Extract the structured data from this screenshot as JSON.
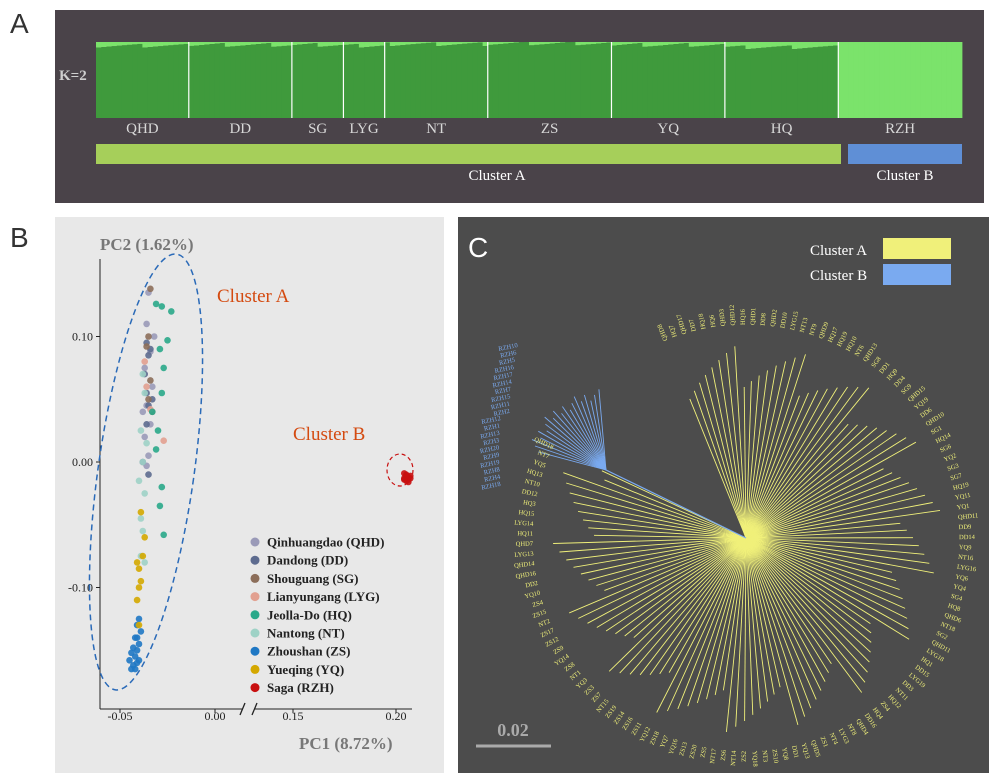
{
  "panel_letters": {
    "a": "A",
    "b": "B",
    "c": "C"
  },
  "colors": {
    "dark_panel": "#4a4349",
    "light_panel": "#e8e8e8",
    "tree_panel": "#4c4c4c",
    "cluster_a_bar": "#a6cf5a",
    "cluster_b_bar": "#5f8fd6",
    "cluster_a_tree": "#f0f07a",
    "cluster_b_tree": "#7aaaf0",
    "annotation": "#d44a10"
  },
  "chart_data": [
    {
      "panel": "A",
      "type": "bar",
      "k_label": "K=2",
      "populations": [
        "QHD",
        "DD",
        "SG",
        "LYG",
        "NT",
        "ZS",
        "YQ",
        "HQ",
        "RZH"
      ],
      "population_sample_counts": [
        18,
        20,
        10,
        8,
        20,
        24,
        22,
        22,
        24
      ],
      "population_mean_ancestry_cluster1": [
        0.95,
        0.96,
        0.96,
        0.95,
        0.97,
        0.98,
        0.96,
        0.93,
        0.0
      ],
      "clusters": [
        {
          "label": "Cluster A",
          "populations": [
            "QHD",
            "DD",
            "SG",
            "LYG",
            "NT",
            "ZS",
            "YQ",
            "HQ"
          ],
          "color": "#a6cf5a"
        },
        {
          "label": "Cluster B",
          "populations": [
            "RZH"
          ],
          "color": "#5f8fd6"
        }
      ]
    },
    {
      "panel": "B",
      "type": "scatter",
      "xlabel": "PC1 (8.72%)",
      "ylabel": "PC2 (1.62%)",
      "x_ticks": [
        "-0.05",
        "0.00",
        "0.15",
        "0.20"
      ],
      "y_ticks": [
        "0.10",
        "0.00",
        "-0.10"
      ],
      "xlim_left": [
        -0.056,
        0.012
      ],
      "xlim_right": [
        0.14,
        0.21
      ],
      "ylim": [
        -0.19,
        0.15
      ],
      "axis_break": true,
      "annotations": [
        "Cluster A",
        "Cluster B"
      ],
      "legend": [
        {
          "name": "Qinhuangdao (QHD)",
          "color": "#9a9ab8"
        },
        {
          "name": "Dandong (DD)",
          "color": "#5d6b8f"
        },
        {
          "name": "Shouguang (SG)",
          "color": "#8c6e5a"
        },
        {
          "name": "Lianyungang (LYG)",
          "color": "#e2a090"
        },
        {
          "name": "Jeolla-Do (HQ)",
          "color": "#2aa88a"
        },
        {
          "name": "Nantong (NT)",
          "color": "#9ed2c6"
        },
        {
          "name": "Zhoushan (ZS)",
          "color": "#1f78c4"
        },
        {
          "name": "Yueqing (YQ)",
          "color": "#d4a800"
        },
        {
          "name": "Saga (RZH)",
          "color": "#c81010"
        }
      ],
      "series": [
        {
          "name": "Qinhuangdao (QHD)",
          "x": [
            -0.035,
            -0.036,
            -0.034,
            -0.037,
            -0.033,
            -0.036,
            -0.038,
            -0.034,
            -0.035,
            -0.036,
            -0.032,
            -0.037
          ],
          "y": [
            0.135,
            0.11,
            0.088,
            0.075,
            0.06,
            0.045,
            0.04,
            0.03,
            0.005,
            -0.003,
            0.1,
            0.02
          ]
        },
        {
          "name": "Dandong (DD)",
          "x": [
            -0.036,
            -0.034,
            -0.035,
            -0.037,
            -0.036,
            -0.033,
            -0.035,
            -0.036,
            -0.038,
            -0.035
          ],
          "y": [
            0.095,
            0.09,
            0.085,
            0.07,
            0.055,
            0.05,
            0.045,
            0.03,
            0.0,
            -0.01
          ]
        },
        {
          "name": "Shouguang (SG)",
          "x": [
            -0.034,
            -0.035,
            -0.036,
            -0.034,
            -0.035,
            -0.033
          ],
          "y": [
            0.138,
            0.1,
            0.092,
            0.065,
            0.05,
            0.04
          ]
        },
        {
          "name": "Lianyungang (LYG)",
          "x": [
            -0.027,
            -0.036,
            -0.034,
            -0.037
          ],
          "y": [
            0.017,
            0.06,
            0.042,
            0.08
          ]
        },
        {
          "name": "Jeolla-Do (HQ)",
          "x": [
            -0.031,
            -0.028,
            -0.023,
            -0.025,
            -0.029,
            -0.027,
            -0.028,
            -0.033,
            -0.03,
            -0.031,
            -0.028,
            -0.029,
            -0.027
          ],
          "y": [
            0.126,
            0.124,
            0.12,
            0.097,
            0.09,
            0.075,
            0.055,
            0.04,
            0.025,
            0.01,
            -0.02,
            -0.035,
            -0.058
          ]
        },
        {
          "name": "Nantong (NT)",
          "x": [
            -0.038,
            -0.037,
            -0.039,
            -0.036,
            -0.038,
            -0.04,
            -0.037,
            -0.039,
            -0.038,
            -0.039,
            -0.037
          ],
          "y": [
            0.07,
            0.055,
            0.025,
            0.015,
            0.0,
            -0.015,
            -0.025,
            -0.045,
            -0.055,
            -0.075,
            -0.08
          ]
        },
        {
          "name": "Zhoushan (ZS)",
          "x": [
            -0.04,
            -0.041,
            -0.039,
            -0.042,
            -0.04,
            -0.043,
            -0.041,
            -0.044,
            -0.042,
            -0.04,
            -0.041,
            -0.043,
            -0.042,
            -0.044,
            -0.045,
            -0.041
          ],
          "y": [
            -0.125,
            -0.13,
            -0.135,
            -0.14,
            -0.145,
            -0.148,
            -0.15,
            -0.152,
            -0.155,
            -0.158,
            -0.16,
            -0.162,
            -0.165,
            -0.165,
            -0.158,
            -0.14
          ]
        },
        {
          "name": "Yueqing (YQ)",
          "x": [
            -0.039,
            -0.037,
            -0.041,
            -0.04,
            -0.038,
            -0.039,
            -0.04,
            -0.041,
            -0.04
          ],
          "y": [
            -0.04,
            -0.06,
            -0.08,
            -0.085,
            -0.075,
            -0.095,
            -0.1,
            -0.11,
            -0.13
          ]
        },
        {
          "name": "Saga (RZH)",
          "x": [
            0.205,
            0.206,
            0.204,
            0.207,
            0.205,
            0.206,
            0.204,
            0.205,
            0.207,
            0.206,
            0.205,
            0.204
          ],
          "y": [
            -0.01,
            -0.012,
            -0.013,
            -0.011,
            -0.015,
            -0.014,
            -0.009,
            -0.012,
            -0.013,
            -0.016,
            -0.011,
            -0.014
          ]
        }
      ]
    },
    {
      "panel": "C",
      "type": "tree",
      "scale_label": "0.02",
      "legend": [
        {
          "name": "Cluster A",
          "color": "#f0f07a"
        },
        {
          "name": "Cluster B",
          "color": "#7aaaf0"
        }
      ],
      "cluster_b_tips": [
        "RZH10",
        "RZH6",
        "RZH5",
        "RZH16",
        "RZH17",
        "RZH14",
        "RZH7",
        "RZH15",
        "RZH11",
        "RZH2",
        "RZH12",
        "RZH1",
        "RZH13",
        "RZH3",
        "RZH20",
        "RZH9",
        "RZH19",
        "RZH8",
        "RZH4",
        "RZH18"
      ],
      "cluster_a_tips": [
        "QHD8",
        "HQ7",
        "QHD17",
        "DD7",
        "HQ18",
        "HQ6",
        "QHD3",
        "QHD12",
        "HQ16",
        "QHD1",
        "DD8",
        "QHD2",
        "DD10",
        "LYG15",
        "NT13",
        "NT9",
        "QHD9",
        "HQ17",
        "HQ19",
        "HQ10",
        "NT6",
        "QHD13",
        "SG8",
        "DD1",
        "HQ9",
        "DD4",
        "SG9",
        "QHD15",
        "YQ19",
        "DD6",
        "QHD10",
        "SG1",
        "HQ14",
        "SG6",
        "YQ2",
        "SG3",
        "SG7",
        "HQ19",
        "YQ11",
        "YQ1",
        "QHD11",
        "DD9",
        "DD14",
        "YQ9",
        "NT16",
        "LYG16",
        "YQ6",
        "YQ4",
        "SG4",
        "HQ8",
        "QHD6",
        "NT18",
        "SG2",
        "QHD11",
        "LYG18",
        "HQ1",
        "DD15",
        "LYG19",
        "DD3",
        "NT11",
        "HQ12",
        "ZS4",
        "HQ4",
        "DD16",
        "QHD4",
        "NT8",
        "LYG3",
        "NT4",
        "ZS1",
        "QHD5",
        "YQ13",
        "DD1",
        "YQ8",
        "ZS10",
        "NT3",
        "YQ18",
        "ZS2",
        "NT14",
        "ZS6",
        "NT17",
        "ZS5",
        "ZS20",
        "ZS13",
        "YQ16",
        "YQ7",
        "ZS18",
        "YQ12",
        "ZS11",
        "ZS16",
        "ZS14",
        "ZS19",
        "NT15",
        "ZS7",
        "ZS3",
        "YQ3",
        "NT1",
        "ZS8",
        "YQ14",
        "ZS9",
        "ZS12",
        "ZS17",
        "NT2",
        "ZS15",
        "ZS4",
        "YQ10",
        "DD2",
        "QHD16",
        "QHD14",
        "LYG13",
        "QHD7",
        "HQ11",
        "LYG14",
        "HQ15",
        "HQ3",
        "DD12",
        "NT10",
        "HQ13",
        "YQ5",
        "NT7",
        "QHD18"
      ]
    }
  ]
}
